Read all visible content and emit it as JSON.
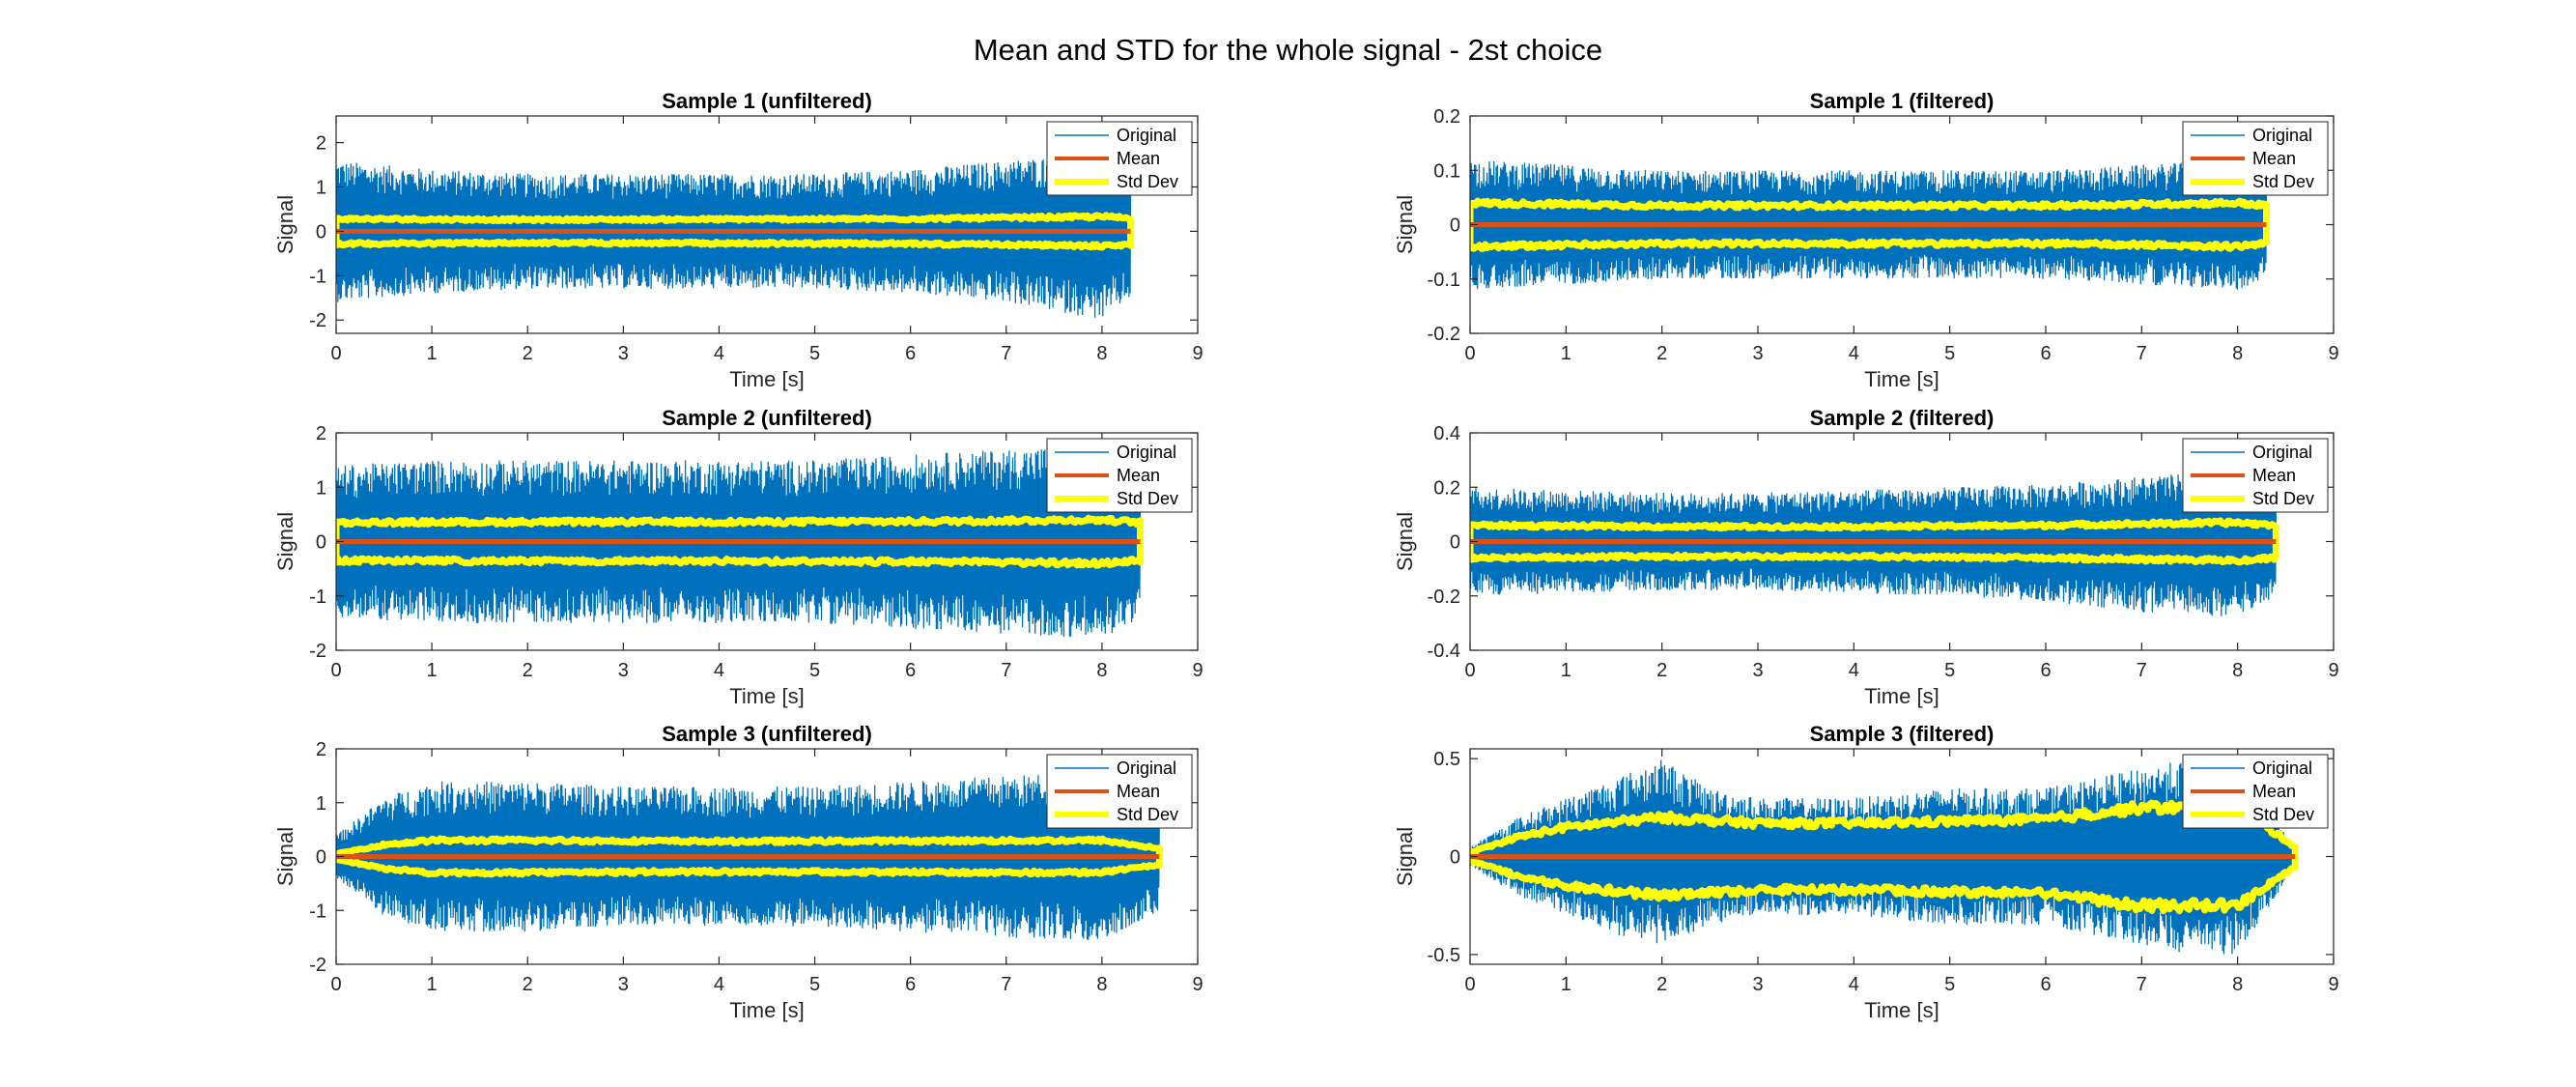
{
  "figure": {
    "title": "Mean and STD for the whole signal - 2st choice"
  },
  "legend": {
    "items": [
      {
        "label": "Original",
        "color": "#0072BD"
      },
      {
        "label": "Mean",
        "color": "#D95319"
      },
      {
        "label": "Std Dev",
        "color": "#FFFF00"
      }
    ],
    "placement": "top-right"
  },
  "chart_data": [
    {
      "type": "line",
      "title": "Sample 1 (unfiltered)",
      "xlabel": "Time [s]",
      "ylabel": "Signal",
      "xlim": [
        0,
        9
      ],
      "ylim": [
        -2.3,
        2.6
      ],
      "xticks": [
        0,
        1,
        2,
        3,
        4,
        5,
        6,
        7,
        8,
        9
      ],
      "yticks": [
        -2,
        -1,
        0,
        1,
        2
      ],
      "duration": 8.3,
      "original_envelope": {
        "t": [
          0,
          1,
          2,
          3,
          4,
          5,
          6,
          7,
          7.5,
          8,
          8.3
        ],
        "upper": [
          1.6,
          1.4,
          1.3,
          1.3,
          1.3,
          1.3,
          1.4,
          1.6,
          1.7,
          1.8,
          1.5
        ],
        "lower": [
          -1.6,
          -1.4,
          -1.3,
          -1.3,
          -1.3,
          -1.3,
          -1.4,
          -1.6,
          -1.8,
          -2.0,
          -1.5
        ]
      },
      "mean": 0.0,
      "std": {
        "t": [
          0,
          2,
          4,
          6,
          8,
          8.3
        ],
        "values": [
          0.28,
          0.26,
          0.27,
          0.28,
          0.33,
          0.3
        ]
      },
      "series": [
        {
          "name": "Original"
        },
        {
          "name": "Mean"
        },
        {
          "name": "Std Dev"
        }
      ]
    },
    {
      "type": "line",
      "title": "Sample 1 (filtered)",
      "xlabel": "Time [s]",
      "ylabel": "Signal",
      "xlim": [
        0,
        9
      ],
      "ylim": [
        -0.2,
        0.2
      ],
      "xticks": [
        0,
        1,
        2,
        3,
        4,
        5,
        6,
        7,
        8,
        9
      ],
      "yticks": [
        -0.2,
        -0.1,
        0,
        0.1,
        0.2
      ],
      "duration": 8.3,
      "original_envelope": {
        "t": [
          0,
          1,
          2,
          3,
          4,
          5,
          6,
          7,
          8,
          8.3
        ],
        "upper": [
          0.12,
          0.11,
          0.1,
          0.1,
          0.1,
          0.1,
          0.1,
          0.11,
          0.12,
          0.1
        ],
        "lower": [
          -0.12,
          -0.11,
          -0.1,
          -0.1,
          -0.1,
          -0.1,
          -0.1,
          -0.11,
          -0.12,
          -0.1
        ]
      },
      "mean": 0.0,
      "std": {
        "t": [
          0,
          2,
          4,
          6,
          8,
          8.3
        ],
        "values": [
          0.04,
          0.035,
          0.035,
          0.035,
          0.04,
          0.035
        ]
      },
      "series": [
        {
          "name": "Original"
        },
        {
          "name": "Mean"
        },
        {
          "name": "Std Dev"
        }
      ]
    },
    {
      "type": "line",
      "title": "Sample 2 (unfiltered)",
      "xlabel": "Time [s]",
      "ylabel": "Signal",
      "xlim": [
        0,
        9
      ],
      "ylim": [
        -2,
        2
      ],
      "xticks": [
        0,
        1,
        2,
        3,
        4,
        5,
        6,
        7,
        8,
        9
      ],
      "yticks": [
        -2,
        -1,
        0,
        1,
        2
      ],
      "duration": 8.4,
      "original_envelope": {
        "t": [
          0,
          1,
          2,
          3,
          4,
          5,
          6,
          7,
          8,
          8.4
        ],
        "upper": [
          1.4,
          1.5,
          1.5,
          1.5,
          1.5,
          1.5,
          1.6,
          1.7,
          1.8,
          1.4
        ],
        "lower": [
          -1.4,
          -1.5,
          -1.5,
          -1.5,
          -1.5,
          -1.5,
          -1.6,
          -1.7,
          -1.8,
          -1.4
        ]
      },
      "mean": 0.0,
      "std": {
        "t": [
          0,
          2,
          4,
          6,
          8,
          8.4
        ],
        "values": [
          0.35,
          0.36,
          0.36,
          0.37,
          0.4,
          0.35
        ]
      },
      "series": [
        {
          "name": "Original"
        },
        {
          "name": "Mean"
        },
        {
          "name": "Std Dev"
        }
      ]
    },
    {
      "type": "line",
      "title": "Sample 2 (filtered)",
      "xlabel": "Time [s]",
      "ylabel": "Signal",
      "xlim": [
        0,
        9
      ],
      "ylim": [
        -0.4,
        0.4
      ],
      "xticks": [
        0,
        1,
        2,
        3,
        4,
        5,
        6,
        7,
        8,
        9
      ],
      "yticks": [
        -0.4,
        -0.2,
        0,
        0.2,
        0.4
      ],
      "duration": 8.4,
      "original_envelope": {
        "t": [
          0,
          1,
          2,
          3,
          4,
          5,
          6,
          7,
          8,
          8.4
        ],
        "upper": [
          0.2,
          0.19,
          0.18,
          0.18,
          0.19,
          0.2,
          0.21,
          0.24,
          0.26,
          0.2
        ],
        "lower": [
          -0.2,
          -0.19,
          -0.18,
          -0.18,
          -0.19,
          -0.2,
          -0.22,
          -0.26,
          -0.28,
          -0.2
        ]
      },
      "mean": 0.0,
      "std": {
        "t": [
          0,
          2,
          4,
          6,
          8,
          8.4
        ],
        "values": [
          0.06,
          0.055,
          0.055,
          0.06,
          0.07,
          0.06
        ]
      },
      "series": [
        {
          "name": "Original"
        },
        {
          "name": "Mean"
        },
        {
          "name": "Std Dev"
        }
      ]
    },
    {
      "type": "line",
      "title": "Sample 3 (unfiltered)",
      "xlabel": "Time [s]",
      "ylabel": "Signal",
      "xlim": [
        0,
        9
      ],
      "ylim": [
        -2,
        2
      ],
      "xticks": [
        0,
        1,
        2,
        3,
        4,
        5,
        6,
        7,
        8,
        9
      ],
      "yticks": [
        -2,
        -1,
        0,
        1,
        2
      ],
      "duration": 8.6,
      "original_envelope": {
        "t": [
          0,
          0.5,
          1,
          2,
          3,
          4,
          5,
          6,
          7,
          8,
          8.6
        ],
        "upper": [
          0.4,
          1.1,
          1.4,
          1.4,
          1.3,
          1.3,
          1.3,
          1.4,
          1.5,
          1.6,
          1.0
        ],
        "lower": [
          -0.4,
          -1.1,
          -1.4,
          -1.4,
          -1.3,
          -1.3,
          -1.3,
          -1.4,
          -1.5,
          -1.6,
          -1.0
        ]
      },
      "mean": 0.0,
      "std": {
        "t": [
          0,
          0.5,
          1,
          2,
          4,
          6,
          8,
          8.6
        ],
        "values": [
          0.05,
          0.22,
          0.3,
          0.3,
          0.28,
          0.29,
          0.3,
          0.15
        ]
      },
      "series": [
        {
          "name": "Original"
        },
        {
          "name": "Mean"
        },
        {
          "name": "Std Dev"
        }
      ]
    },
    {
      "type": "line",
      "title": "Sample 3 (filtered)",
      "xlabel": "Time [s]",
      "ylabel": "Signal",
      "xlim": [
        0,
        9
      ],
      "ylim": [
        -0.55,
        0.55
      ],
      "xticks": [
        0,
        1,
        2,
        3,
        4,
        5,
        6,
        7,
        8,
        9
      ],
      "yticks": [
        -0.5,
        0,
        0.5
      ],
      "duration": 8.6,
      "original_envelope": {
        "t": [
          0,
          0.5,
          1,
          1.5,
          2,
          2.5,
          3,
          3.5,
          4,
          5,
          6,
          7,
          7.5,
          8,
          8.6
        ],
        "upper": [
          0.05,
          0.2,
          0.3,
          0.4,
          0.5,
          0.35,
          0.3,
          0.3,
          0.3,
          0.35,
          0.35,
          0.45,
          0.5,
          0.5,
          0.05
        ],
        "lower": [
          -0.05,
          -0.2,
          -0.3,
          -0.4,
          -0.45,
          -0.35,
          -0.3,
          -0.3,
          -0.3,
          -0.35,
          -0.35,
          -0.45,
          -0.5,
          -0.5,
          -0.05
        ]
      },
      "mean": 0.0,
      "std": {
        "t": [
          0,
          0.5,
          1,
          2,
          3,
          4,
          5,
          6,
          7,
          8,
          8.6
        ],
        "values": [
          0.02,
          0.1,
          0.15,
          0.2,
          0.17,
          0.17,
          0.18,
          0.19,
          0.25,
          0.25,
          0.05
        ]
      },
      "series": [
        {
          "name": "Original"
        },
        {
          "name": "Mean"
        },
        {
          "name": "Std Dev"
        }
      ]
    }
  ]
}
